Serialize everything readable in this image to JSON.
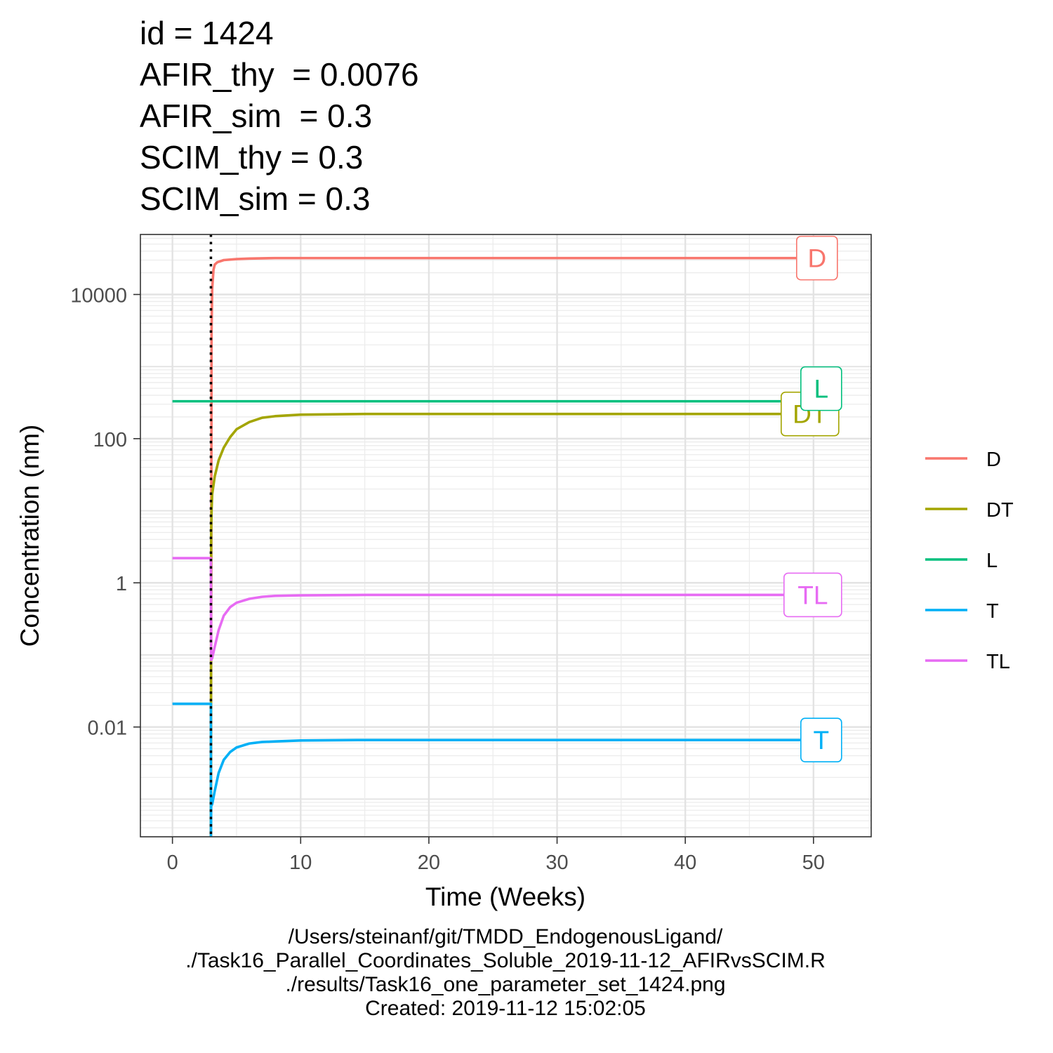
{
  "title_lines": [
    "id = 1424",
    "AFIR_thy  = 0.0076",
    "AFIR_sim  = 0.3",
    "SCIM_thy = 0.3",
    "SCIM_sim = 0.3"
  ],
  "caption_lines": [
    "/Users/steinanf/git/TMDD_EndogenousLigand/",
    "./Task16_Parallel_Coordinates_Soluble_2019-11-12_AFIRvsSCIM.R",
    "./results/Task16_one_parameter_set_1424.png",
    "Created: 2019-11-12 15:02:05"
  ],
  "chart_data": {
    "type": "line",
    "xlabel": "Time (Weeks)",
    "ylabel": "Concentration (nm)",
    "x_scale": "linear",
    "y_scale": "log10",
    "xlim": [
      -2.5,
      54.5
    ],
    "ylim": [
      0.0003,
      68000
    ],
    "x_ticks": [
      0,
      10,
      20,
      30,
      40,
      50
    ],
    "x_tick_labels": [
      "0",
      "10",
      "20",
      "30",
      "40",
      "50"
    ],
    "y_ticks": [
      10000,
      100,
      1,
      0.01
    ],
    "y_tick_labels": [
      "10000",
      "100",
      "1",
      "0.01"
    ],
    "grid": true,
    "legend_position": "right",
    "dose_time_line": 3,
    "series": [
      {
        "name": "D",
        "color": "#F8766D",
        "x": [
          3,
          3.05,
          3.1,
          3.2,
          3.3,
          3.5,
          4,
          5,
          6,
          8,
          10,
          20,
          30,
          40,
          50
        ],
        "y": [
          0.0003,
          3000,
          12000,
          22000,
          26000,
          28000,
          30000,
          31000,
          31500,
          32000,
          32000,
          32000,
          32000,
          32000,
          32000
        ]
      },
      {
        "name": "DT",
        "color": "#A3A500",
        "x": [
          3,
          3.02,
          3.05,
          3.1,
          3.3,
          3.6,
          4,
          4.5,
          5,
          6,
          7,
          8,
          10,
          15,
          20,
          30,
          40,
          50
        ],
        "y": [
          0.0003,
          5,
          10,
          17,
          30,
          50,
          75,
          105,
          135,
          170,
          195,
          205,
          215,
          220,
          220,
          220,
          220,
          220
        ]
      },
      {
        "name": "L",
        "color": "#00BF7D",
        "x": [
          0,
          50
        ],
        "y": [
          330,
          330
        ]
      },
      {
        "name": "T",
        "color": "#00B0F6",
        "x": [
          0,
          3,
          3,
          3.02,
          3.1,
          3.3,
          3.6,
          4,
          4.5,
          5,
          6,
          7,
          8,
          10,
          15,
          20,
          30,
          40,
          50
        ],
        "y": [
          0.021,
          0.021,
          0.0003,
          0.0008,
          0.00085,
          0.0013,
          0.0023,
          0.0035,
          0.0045,
          0.0052,
          0.0059,
          0.0062,
          0.0063,
          0.0065,
          0.0066,
          0.0066,
          0.0066,
          0.0066,
          0.0066
        ]
      },
      {
        "name": "TL",
        "color": "#E76BF3",
        "x": [
          0,
          3,
          3.02,
          3.1,
          3.3,
          3.6,
          4,
          4.5,
          5,
          6,
          7,
          8,
          10,
          15,
          20,
          30,
          40,
          50
        ],
        "y": [
          2.2,
          2.2,
          0.085,
          0.09,
          0.13,
          0.22,
          0.35,
          0.46,
          0.53,
          0.6,
          0.64,
          0.66,
          0.67,
          0.68,
          0.68,
          0.68,
          0.68,
          0.68
        ]
      }
    ],
    "end_labels": [
      {
        "text": "D",
        "series": "D"
      },
      {
        "text": "DT",
        "series": "DT"
      },
      {
        "text": "L",
        "series": "L"
      },
      {
        "text": "TL",
        "series": "TL"
      },
      {
        "text": "T",
        "series": "T"
      }
    ]
  }
}
